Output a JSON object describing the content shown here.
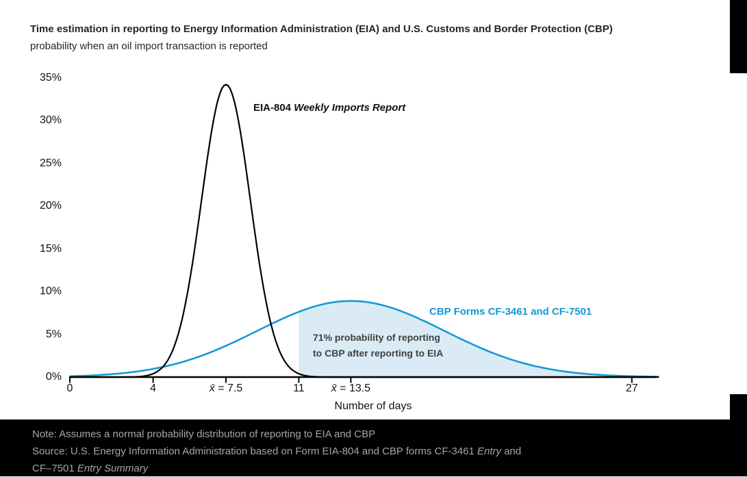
{
  "chart_data": {
    "type": "line",
    "title": "Time estimation in reporting to Energy Information Administration (EIA) and U.S. Customs and Border Protection (CBP)",
    "subtitle": "probability when an oil import transaction is reported",
    "xlabel": "Number of days",
    "xlim": [
      0,
      28.3
    ],
    "ylim": [
      0,
      35
    ],
    "grid": false,
    "legend_position": "inline-labels",
    "y_ticks": [
      {
        "pct": 0,
        "label": "0%"
      },
      {
        "pct": 5,
        "label": "5%"
      },
      {
        "pct": 10,
        "label": "10%"
      },
      {
        "pct": 15,
        "label": "15%"
      },
      {
        "pct": 20,
        "label": "20%"
      },
      {
        "pct": 25,
        "label": "25%"
      },
      {
        "pct": 30,
        "label": "30%"
      },
      {
        "pct": 35,
        "label": "35%"
      }
    ],
    "x_ticks": [
      {
        "day": 0,
        "label": "0"
      },
      {
        "day": 4,
        "label": "4"
      },
      {
        "day": 7.5,
        "italic": "x̄",
        "label": " = 7.5"
      },
      {
        "day": 11,
        "label": "11"
      },
      {
        "day": 13.5,
        "italic": "x̄",
        "label": " = 13.5"
      },
      {
        "day": 27,
        "label": "27"
      }
    ],
    "series": [
      {
        "name": "EIA-804 Weekly Imports Report",
        "label_plain": "EIA-804 ",
        "label_italic": "Weekly Imports Report",
        "distribution": "normal",
        "mean_days": 7.5,
        "sigma_days": 1.17,
        "peak_pct": 34.2,
        "color": "#000000"
      },
      {
        "name": "CBP Forms CF-3461 and CF-7501",
        "label": "CBP Forms CF-3461 and CF-7501",
        "distribution": "normal",
        "mean_days": 13.5,
        "sigma_days": 4.5,
        "peak_pct": 8.9,
        "color": "#1399d6"
      }
    ],
    "shaded_region": {
      "series": "CBP Forms CF-3461 and CF-7501",
      "from_day": 11,
      "probability_pct": 71,
      "fill_color": "#daebf5",
      "label_line1": "71% probability of reporting",
      "label_line2": "to CBP after reporting to EIA"
    }
  },
  "footer": {
    "note": "Note: Assumes a normal probability distribution of reporting to EIA and CBP",
    "source_line1_plain": "Source: U.S. Energy Information Administration based on Form EIA-804 and CBP forms CF-3461 ",
    "source_line1_italic": "Entry",
    "source_line1_end": " and",
    "source_line2_plain": "CF–7501 ",
    "source_line2_italic": "Entry Summary"
  },
  "colors": {
    "accent_blue": "#1399d6",
    "shade_blue": "#daebf5",
    "axis_black": "#000000",
    "title_text": "#262626",
    "annotation_text": "#3f3f3f",
    "footer_bg": "#000000",
    "footer_text": "#a6a6a6",
    "background": "#ffffff"
  }
}
